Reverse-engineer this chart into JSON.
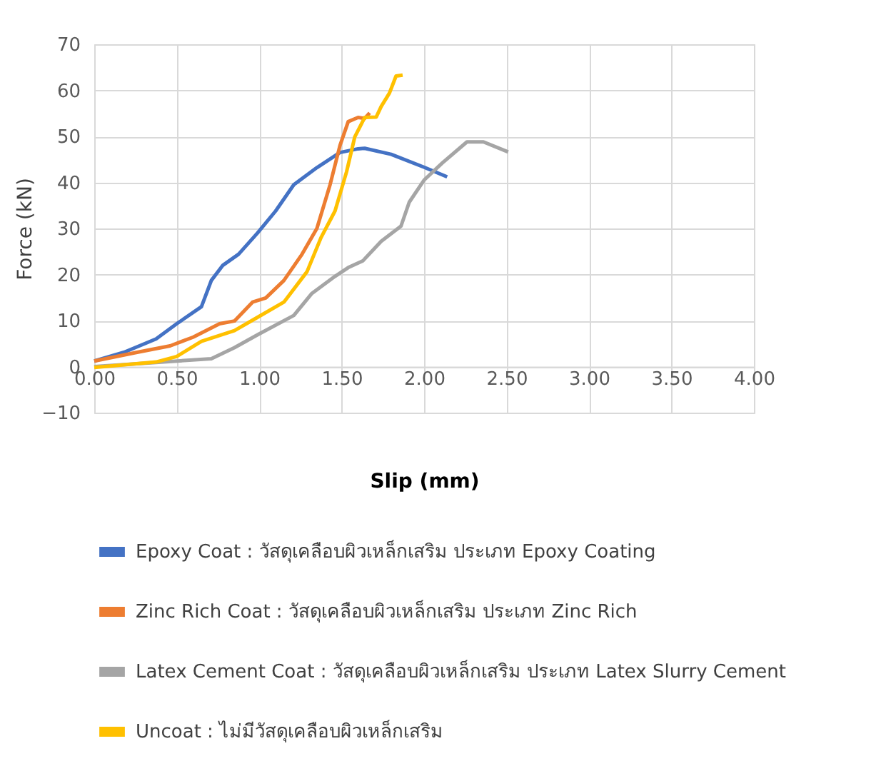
{
  "chart_data": {
    "type": "line",
    "xlabel": "Slip (mm)",
    "ylabel": "Force (kN)",
    "xlim": [
      0,
      4
    ],
    "ylim": [
      -10,
      70
    ],
    "xticks": [
      {
        "value": 0,
        "label": "0.00"
      },
      {
        "value": 0.5,
        "label": "0.50"
      },
      {
        "value": 1,
        "label": "1.00"
      },
      {
        "value": 1.5,
        "label": "1.50"
      },
      {
        "value": 2,
        "label": "2.00"
      },
      {
        "value": 2.5,
        "label": "2.50"
      },
      {
        "value": 3,
        "label": "3.00"
      },
      {
        "value": 3.5,
        "label": "3.50"
      },
      {
        "value": 4,
        "label": "4.00"
      }
    ],
    "yticks": [
      -10,
      0,
      10,
      20,
      30,
      40,
      50,
      60,
      70
    ],
    "grid": true,
    "legend": "bottom",
    "marker": "none",
    "line_style": "solid",
    "series": [
      {
        "name": "Epoxy Coat : วัสดุเคลือบผิวเหล็กเสริม ประเภท Epoxy Coating",
        "color": "#4472c4",
        "x": [
          0,
          0.18,
          0.375,
          0.5,
          0.65,
          0.71,
          0.78,
          0.875,
          0.99,
          1.1,
          1.21,
          1.35,
          1.49,
          1.6,
          1.64,
          1.8,
          2.0,
          2.14
        ],
        "values": [
          1.2,
          3.1,
          6,
          9.3,
          13,
          18.7,
          22,
          24.4,
          29,
          33.8,
          39.5,
          43.2,
          46.5,
          47.3,
          47.4,
          46.1,
          43.3,
          41.2
        ]
      },
      {
        "name": "Zinc Rich Coat : วัสดุเคลือบผิวเหล็กเสริม ประเภท Zinc Rich",
        "color": "#ed7d31",
        "x": [
          0,
          0.26,
          0.46,
          0.6,
          0.76,
          0.85,
          0.96,
          1.04,
          1.15,
          1.26,
          1.35,
          1.43,
          1.49,
          1.54,
          1.6,
          1.64,
          1.67
        ],
        "values": [
          1.2,
          3.1,
          4.5,
          6.4,
          9.3,
          9.9,
          14,
          14.9,
          18.7,
          24.4,
          30,
          39.5,
          48,
          53.2,
          54.1,
          53.9,
          55.1
        ]
      },
      {
        "name": "Latex Cement Coat : วัสดุเคลือบผิวเหล็กเสริม ประเภท Latex Slurry Cement",
        "color": "#a5a5a5",
        "x": [
          0,
          0.375,
          0.71,
          0.85,
          0.99,
          1.21,
          1.32,
          1.46,
          1.54,
          1.63,
          1.74,
          1.86,
          1.91,
          2.0,
          2.11,
          2.26,
          2.36,
          2.51
        ],
        "values": [
          0,
          0.9,
          1.7,
          4.1,
          6.9,
          11.1,
          15.9,
          19.6,
          21.5,
          23,
          27.2,
          30.5,
          35.7,
          40.5,
          44.2,
          48.8,
          48.8,
          46.6
        ]
      },
      {
        "name": "Uncoat : ไม่มีวัสดุเคลือบผิวเหล็กเสริม",
        "color": "#ffc000",
        "x": [
          0,
          0.375,
          0.5,
          0.65,
          0.85,
          0.99,
          1.15,
          1.29,
          1.375,
          1.46,
          1.53,
          1.58,
          1.64,
          1.71,
          1.74,
          1.79,
          1.83,
          1.87
        ],
        "values": [
          -0.2,
          1,
          2.2,
          5.5,
          7.8,
          10.7,
          14,
          20.6,
          28,
          33.8,
          42.3,
          49.9,
          54.1,
          54.2,
          56.5,
          59.4,
          63.1,
          63.3
        ]
      }
    ]
  }
}
